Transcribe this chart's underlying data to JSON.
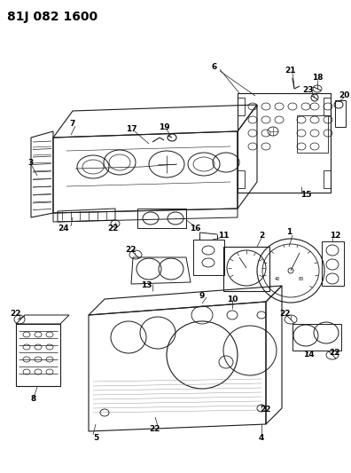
{
  "title": "81J 082 1600",
  "bg_color": "#ffffff",
  "line_color": "#1a1a1a",
  "title_fontsize": 10,
  "fig_width": 3.96,
  "fig_height": 5.33,
  "dpi": 100
}
